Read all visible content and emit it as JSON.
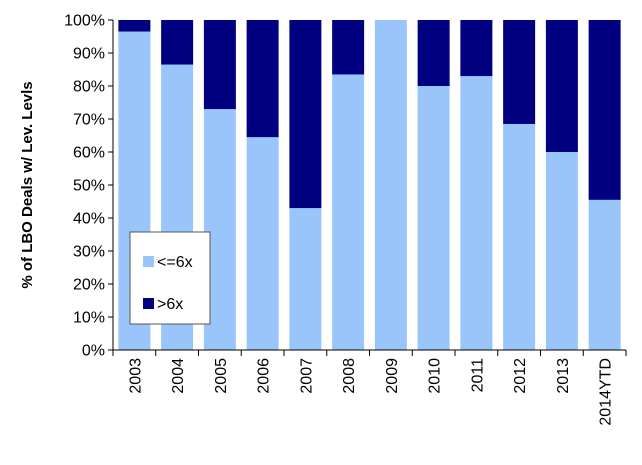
{
  "chart_data": {
    "type": "bar",
    "stacked": true,
    "percent": true,
    "categories": [
      "2003",
      "2004",
      "2005",
      "2006",
      "2007",
      "2008",
      "2009",
      "2010",
      "2011",
      "2012",
      "2013",
      "2014YTD"
    ],
    "series": [
      {
        "name": "<=6x",
        "color": "#99c5fb",
        "values": [
          96.5,
          86.5,
          73,
          64.5,
          43,
          83.5,
          100,
          80,
          83,
          68.5,
          60,
          45.5
        ]
      },
      {
        "name": ">6x",
        "color": "#000080",
        "values": [
          3.5,
          13.5,
          27,
          35.5,
          57,
          16.5,
          0,
          20,
          17,
          31.5,
          40,
          54.5
        ]
      }
    ],
    "ylabel": "% of LBO Deals w/ Lev. Levls",
    "ylim": [
      0,
      100
    ],
    "yticks": [
      "0%",
      "10%",
      "20%",
      "30%",
      "40%",
      "50%",
      "60%",
      "70%",
      "80%",
      "90%",
      "100%"
    ],
    "grid": false,
    "legend": "lower-left"
  }
}
